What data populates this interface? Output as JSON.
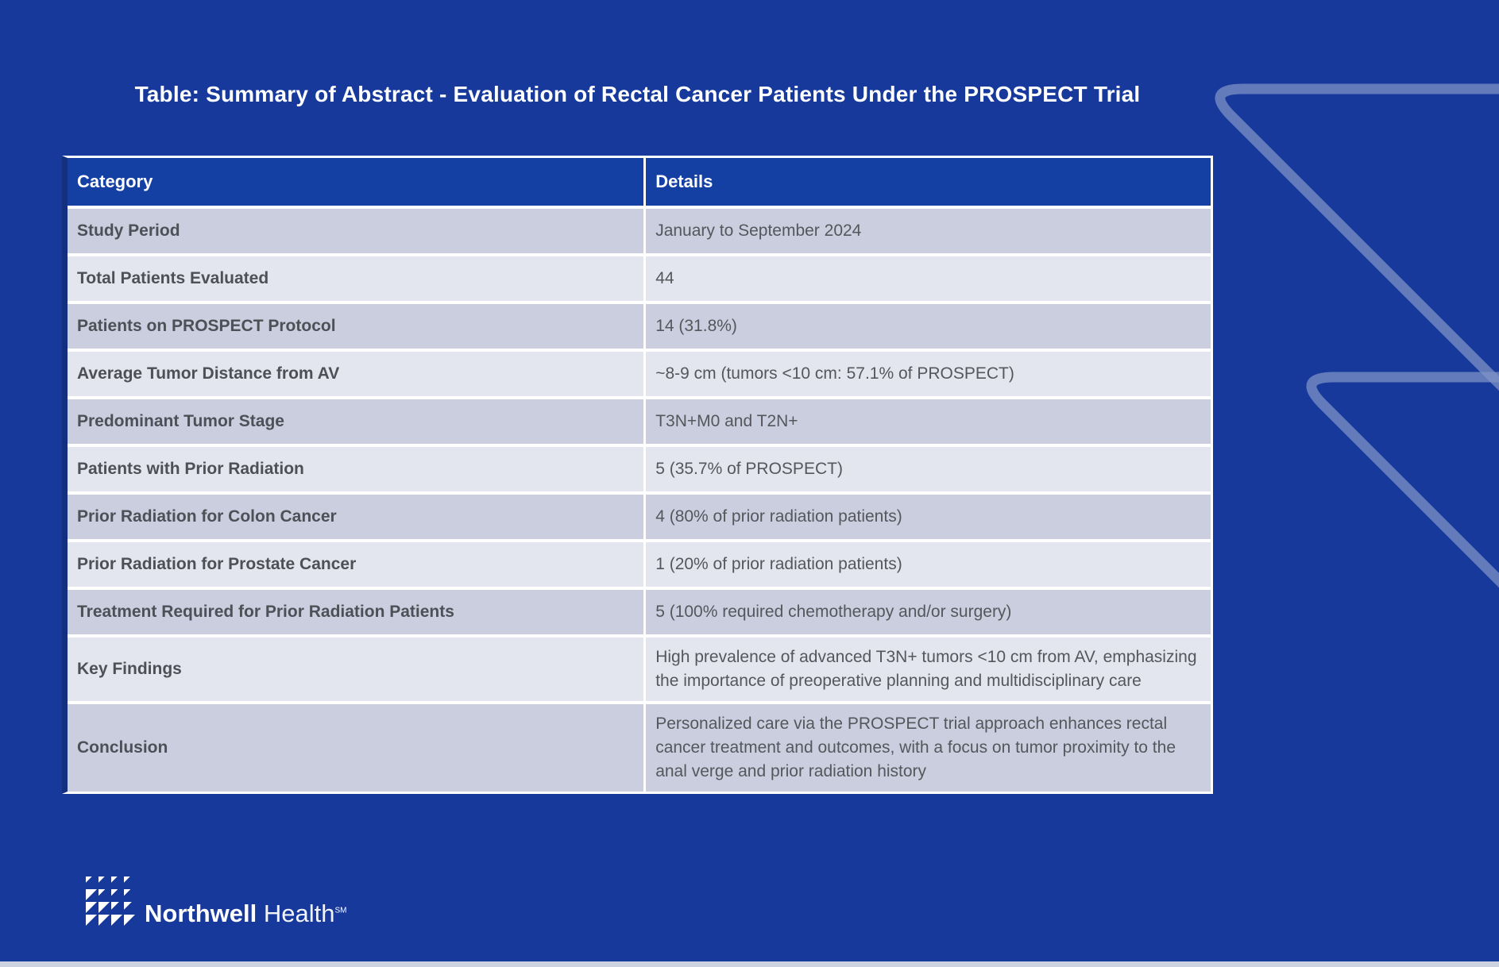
{
  "slide": {
    "title": "Table: Summary of Abstract - Evaluation of Rectal Cancer Patients Under the PROSPECT Trial",
    "background_color": "#16399B",
    "accent_line_color": "#7E92C5",
    "bottom_strip_color": "#CDD2E0"
  },
  "table": {
    "columns": {
      "category": "Category",
      "details": "Details"
    },
    "header_bg": "#1540A3",
    "row_color_odd": "#CACEDE",
    "row_color_even": "#E3E5EF",
    "rows": [
      {
        "category": "Study Period",
        "details": "January to September 2024"
      },
      {
        "category": "Total Patients Evaluated",
        "details": "44"
      },
      {
        "category": "Patients on PROSPECT Protocol",
        "details": "14 (31.8%)"
      },
      {
        "category": "Average Tumor Distance from AV",
        "details": "~8-9 cm (tumors <10 cm: 57.1% of PROSPECT)"
      },
      {
        "category": "Predominant Tumor Stage",
        "details": "T3N+M0 and T2N+"
      },
      {
        "category": "Patients with Prior Radiation",
        "details": "5 (35.7% of PROSPECT)"
      },
      {
        "category": "Prior Radiation for Colon Cancer",
        "details": "4 (80% of prior radiation patients)"
      },
      {
        "category": "Prior Radiation for Prostate Cancer",
        "details": "1 (20% of prior radiation patients)"
      },
      {
        "category": "Treatment Required for Prior Radiation Patients",
        "details": "5 (100% required chemotherapy and/or surgery)"
      },
      {
        "category": "Key Findings",
        "details": "High prevalence of advanced T3N+ tumors <10 cm from AV, emphasizing the importance of preoperative planning and multidisciplinary care"
      },
      {
        "category": "Conclusion",
        "details": "Personalized care via the PROSPECT trial approach enhances rectal cancer treatment and outcomes, with a focus on tumor proximity to the anal verge and prior radiation history"
      }
    ]
  },
  "footer": {
    "logo_primary": "Northwell",
    "logo_secondary": "Health",
    "logo_trademark": "SM"
  }
}
